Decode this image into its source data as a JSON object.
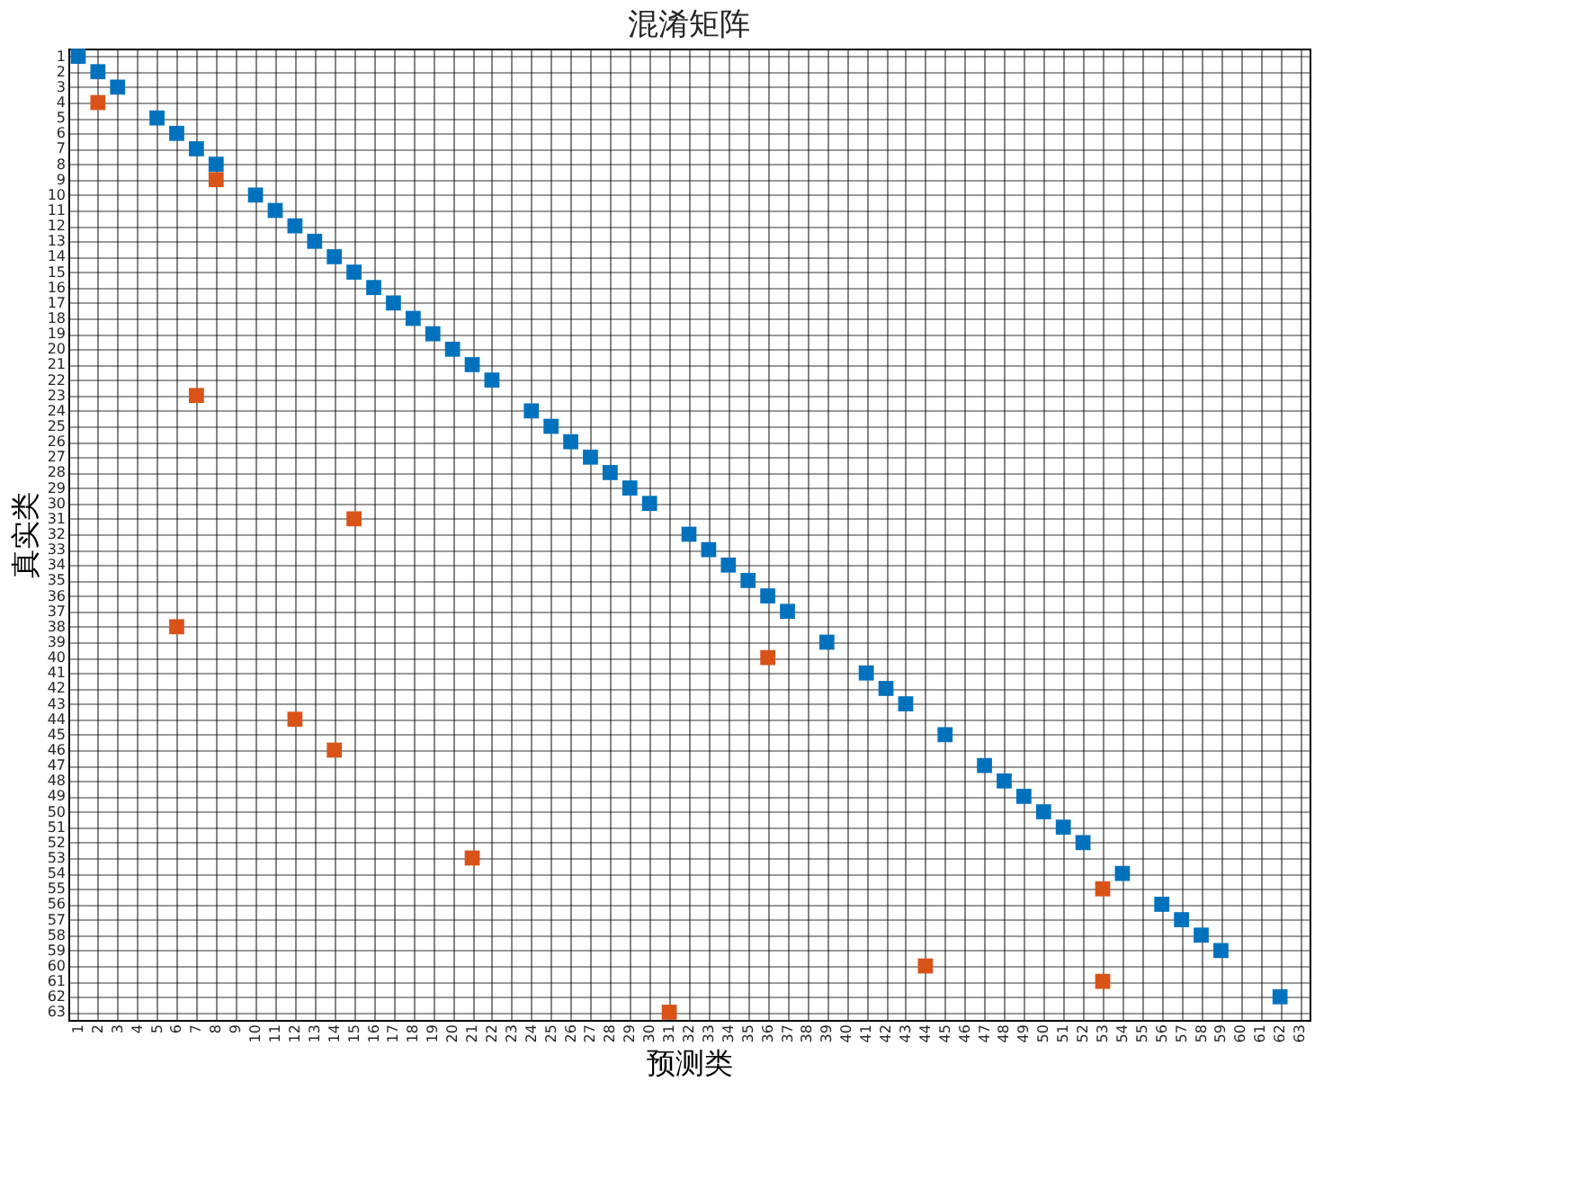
{
  "chart_data": {
    "type": "scatter",
    "title": "混淆矩阵",
    "xlabel": "预测类",
    "ylabel": "真实类",
    "marker": "square",
    "grid": true,
    "xlim": [
      0.5,
      63.5
    ],
    "ylim": [
      63.5,
      0.5
    ],
    "xticks": [
      1,
      2,
      3,
      4,
      5,
      6,
      7,
      8,
      9,
      10,
      11,
      12,
      13,
      14,
      15,
      16,
      17,
      18,
      19,
      20,
      21,
      22,
      23,
      24,
      25,
      26,
      27,
      28,
      29,
      30,
      31,
      32,
      33,
      34,
      35,
      36,
      37,
      38,
      39,
      40,
      41,
      42,
      43,
      44,
      45,
      46,
      47,
      48,
      49,
      50,
      51,
      52,
      53,
      54,
      55,
      56,
      57,
      58,
      59,
      60,
      61,
      62,
      63
    ],
    "yticks": [
      1,
      2,
      3,
      4,
      5,
      6,
      7,
      8,
      9,
      10,
      11,
      12,
      13,
      14,
      15,
      16,
      17,
      18,
      19,
      20,
      21,
      22,
      23,
      24,
      25,
      26,
      27,
      28,
      29,
      30,
      31,
      32,
      33,
      34,
      35,
      36,
      37,
      38,
      39,
      40,
      41,
      42,
      43,
      44,
      45,
      46,
      47,
      48,
      49,
      50,
      51,
      52,
      53,
      54,
      55,
      56,
      57,
      58,
      59,
      60,
      61,
      62,
      63
    ],
    "series": [
      {
        "color": "#0072bd",
        "x": [
          1,
          2,
          3,
          5,
          6,
          7,
          8,
          10,
          11,
          12,
          13,
          14,
          15,
          16,
          17,
          18,
          19,
          20,
          21,
          22,
          24,
          25,
          26,
          27,
          28,
          29,
          30,
          32,
          33,
          34,
          35,
          36,
          37,
          39,
          41,
          42,
          43,
          45,
          47,
          48,
          49,
          50,
          51,
          52,
          54,
          56,
          57,
          58,
          59,
          62
        ],
        "values": [
          1,
          2,
          3,
          5,
          6,
          7,
          8,
          10,
          11,
          12,
          13,
          14,
          15,
          16,
          17,
          18,
          19,
          20,
          21,
          22,
          24,
          25,
          26,
          27,
          28,
          29,
          30,
          32,
          33,
          34,
          35,
          36,
          37,
          39,
          41,
          42,
          43,
          45,
          47,
          48,
          49,
          50,
          51,
          52,
          54,
          56,
          57,
          58,
          59,
          62
        ]
      },
      {
        "color": "#d95319",
        "x": [
          2,
          8,
          7,
          15,
          6,
          36,
          12,
          14,
          21,
          53,
          44,
          53,
          31
        ],
        "values": [
          4,
          9,
          23,
          31,
          38,
          40,
          44,
          46,
          53,
          55,
          60,
          61,
          63
        ]
      }
    ]
  }
}
